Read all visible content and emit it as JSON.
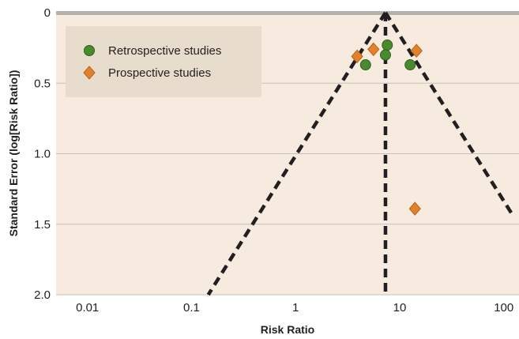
{
  "chart_data": {
    "type": "scatter",
    "title": "",
    "xlabel": "Risk Ratio",
    "ylabel": "Standard Error (log[Risk Ratio])",
    "x_scale": "log",
    "xlim": [
      0.005,
      140
    ],
    "ylim": [
      0,
      2.0
    ],
    "y_inverted": true,
    "x_ticks": [
      {
        "value": 0.01,
        "label": "0.01"
      },
      {
        "value": 0.1,
        "label": "0.1"
      },
      {
        "value": 1,
        "label": "1"
      },
      {
        "value": 10,
        "label": "10"
      },
      {
        "value": 100,
        "label": "100"
      }
    ],
    "y_ticks": [
      {
        "value": 0,
        "label": "0"
      },
      {
        "value": 0.5,
        "label": "0.5"
      },
      {
        "value": 1.0,
        "label": "1.0"
      },
      {
        "value": 1.5,
        "label": "1.5"
      },
      {
        "value": 2.0,
        "label": "2.0"
      }
    ],
    "grid": "horizontal",
    "legend_position": "top-left",
    "center_estimate": 7.3,
    "funnel_z": 1.96,
    "series": [
      {
        "name": "Retrospective studies",
        "marker": "circle",
        "color": "#4a8a2e",
        "points": [
          {
            "x": 4.7,
            "y": 0.37
          },
          {
            "x": 7.6,
            "y": 0.23
          },
          {
            "x": 7.3,
            "y": 0.3
          },
          {
            "x": 12.6,
            "y": 0.37
          }
        ]
      },
      {
        "name": "Prospective studies",
        "marker": "diamond",
        "color": "#e2812c",
        "points": [
          {
            "x": 3.9,
            "y": 0.31
          },
          {
            "x": 5.6,
            "y": 0.26
          },
          {
            "x": 14.5,
            "y": 0.27
          },
          {
            "x": 14.0,
            "y": 1.39
          }
        ]
      }
    ]
  },
  "colors": {
    "plot_background": "#f6ebde",
    "legend_background": "#e8dccc",
    "top_rule": "#b7b1ab",
    "gridline": "#c8c0b6",
    "funnel_line": "#231f20"
  }
}
